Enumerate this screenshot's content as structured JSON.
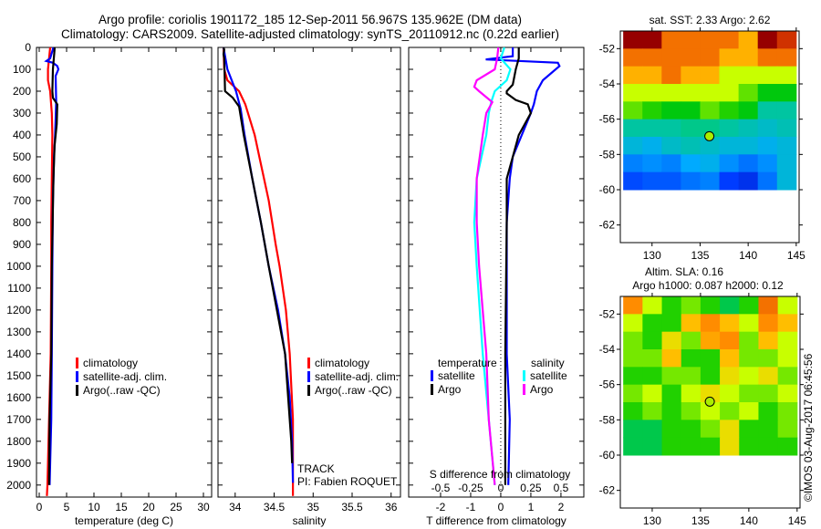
{
  "chart_data": [
    {
      "id": "temperature",
      "type": "line",
      "title_line1": "Argo profile: coriolis 1901172_185 12-Sep-2011 56.967S 135.962E (DM data)",
      "title_line2": "Climatology: CARS2009. Satellite-adjusted climatology: synTS_20110912.nc (0.22d earlier)",
      "xlabel": "temperature (deg C)",
      "xlim": [
        -0.5,
        31.5
      ],
      "ylim": [
        0,
        2055
      ],
      "xticks": [
        0,
        5,
        10,
        15,
        20,
        25,
        30
      ],
      "yticks": [
        0,
        100,
        200,
        300,
        400,
        500,
        600,
        700,
        800,
        900,
        1000,
        1100,
        1200,
        1300,
        1400,
        1500,
        1600,
        1700,
        1800,
        1900,
        2000
      ],
      "legend": [
        "climatology",
        "satellite-adj. clim.",
        "Argo(..raw -QC)"
      ],
      "series": [
        {
          "name": "climatology",
          "color": "#ff0000",
          "depth": [
            0,
            50,
            100,
            150,
            200,
            300,
            400,
            600,
            800,
            1000,
            1400,
            1800,
            2000,
            2050
          ],
          "values": [
            2.0,
            1.8,
            1.6,
            1.6,
            2.0,
            2.3,
            2.4,
            2.3,
            2.2,
            2.2,
            2.1,
            1.7,
            1.5,
            1.4
          ]
        },
        {
          "name": "satellite-adj. clim.",
          "color": "#0000ff",
          "depth": [
            0,
            50,
            62,
            70,
            85,
            100,
            130,
            250,
            400,
            500,
            700,
            1000,
            1400,
            1700,
            2000
          ],
          "values": [
            2.6,
            2.0,
            1.3,
            2.5,
            3.3,
            3.5,
            3.0,
            3.1,
            2.9,
            2.7,
            2.5,
            2.4,
            2.3,
            2.2,
            1.9
          ]
        },
        {
          "name": "Argo(..raw -QC)",
          "color": "#000000",
          "depth": [
            0,
            10,
            100,
            200,
            230,
            260,
            350,
            450,
            600,
            1000,
            1400,
            1700,
            2000
          ],
          "values": [
            2.8,
            2.8,
            2.5,
            2.4,
            2.5,
            3.3,
            3.2,
            2.8,
            2.6,
            2.3,
            2.2,
            1.9,
            1.8
          ]
        }
      ]
    },
    {
      "id": "salinity",
      "type": "line",
      "xlabel": "salinity",
      "xlim": [
        33.78,
        36.12
      ],
      "ylim": [
        0,
        2055
      ],
      "xticks": [
        34,
        34.5,
        35,
        35.5,
        36
      ],
      "legend": [
        "climatology",
        "satellite-adj. clim.",
        "Argo(..raw -QC)"
      ],
      "annotations": [
        "TRACK",
        "PI: Fabien ROQUET"
      ],
      "series": [
        {
          "name": "climatology",
          "color": "#ff0000",
          "depth": [
            0,
            100,
            150,
            200,
            260,
            400,
            500,
            700,
            900,
            1000,
            1200,
            1400,
            1700,
            2050
          ],
          "values": [
            33.85,
            33.86,
            33.9,
            34.05,
            34.13,
            34.25,
            34.31,
            34.43,
            34.52,
            34.57,
            34.65,
            34.7,
            34.74,
            34.74
          ]
        },
        {
          "name": "satellite-adj. clim.",
          "color": "#0000ff",
          "depth": [
            0,
            100,
            200,
            280,
            400,
            600,
            800,
            1000,
            1200,
            1400,
            1600,
            1800,
            1990
          ],
          "values": [
            33.85,
            33.9,
            34.01,
            34.07,
            34.12,
            34.22,
            34.33,
            34.43,
            34.55,
            34.64,
            34.7,
            34.73,
            34.74
          ]
        },
        {
          "name": "Argo(..raw -QC)",
          "color": "#000000",
          "depth": [
            0,
            10,
            30,
            50,
            200,
            230,
            270,
            400,
            600,
            800,
            1000,
            1400,
            1800,
            1900
          ],
          "values": [
            33.85,
            33.86,
            33.85,
            33.86,
            33.87,
            33.97,
            34.05,
            34.11,
            34.22,
            34.33,
            34.43,
            34.64,
            34.72,
            34.73
          ]
        }
      ]
    },
    {
      "id": "difference",
      "type": "line",
      "xlabel": "T difference from climatology",
      "x2label": "S difference from climatology",
      "xlim": [
        -3.06,
        2.76
      ],
      "ylim": [
        0,
        2055
      ],
      "xticks": [
        -2,
        -1,
        0,
        1,
        2
      ],
      "x2ticks": [
        "-0.5",
        "-0.25",
        "0",
        "0.25",
        "0.5"
      ],
      "legend_temperature": {
        "title": "temperature",
        "items": [
          "satellite",
          "Argo"
        ]
      },
      "legend_salinity": {
        "title": "salinity",
        "items": [
          "satellite",
          "Argo"
        ]
      },
      "series": [
        {
          "name": "temperature satellite",
          "color": "#0000ff",
          "var": "T",
          "depth": [
            0,
            40,
            55,
            70,
            85,
            150,
            200,
            260,
            300,
            400,
            500,
            600,
            800,
            1000,
            1400,
            1700,
            2000
          ],
          "values": [
            0.4,
            0.4,
            -0.5,
            1.9,
            1.95,
            1.4,
            1.2,
            1.1,
            1.0,
            0.7,
            0.4,
            0.3,
            0.2,
            0.2,
            0.2,
            0.3,
            0.25
          ]
        },
        {
          "name": "temperature Argo",
          "color": "#000000",
          "var": "T",
          "depth": [
            0,
            50,
            100,
            170,
            200,
            210,
            240,
            260,
            300,
            350,
            400,
            500,
            600,
            800,
            1400,
            2000
          ],
          "values": [
            0.6,
            0.6,
            0.5,
            0.4,
            0.2,
            0.2,
            0.5,
            0.9,
            1.0,
            0.8,
            0.6,
            0.4,
            0.2,
            0.2,
            0.15,
            0.15
          ]
        },
        {
          "name": "salinity satellite",
          "color": "#00ffff",
          "var": "S",
          "depth": [
            0,
            50,
            100,
            150,
            200,
            250,
            300,
            400,
            600,
            800,
            1000,
            1400,
            2000
          ],
          "values": [
            0.03,
            0.0,
            0.08,
            0.05,
            -0.05,
            -0.08,
            -0.1,
            -0.12,
            -0.2,
            -0.22,
            -0.2,
            -0.15,
            -0.05
          ]
        },
        {
          "name": "salinity Argo",
          "color": "#ff00ff",
          "var": "S",
          "depth": [
            0,
            50,
            100,
            150,
            180,
            200,
            250,
            300,
            400,
            600,
            800,
            1000,
            1400,
            1700,
            2000
          ],
          "values": [
            -0.02,
            -0.03,
            -0.05,
            -0.2,
            -0.22,
            -0.18,
            -0.07,
            -0.12,
            -0.15,
            -0.2,
            -0.2,
            -0.18,
            -0.12,
            -0.1,
            -0.05
          ]
        }
      ]
    },
    {
      "id": "sst-map",
      "type": "heatmap",
      "title": "sat. SST: 2.33 Argo: 2.62",
      "xlim": [
        126.7,
        145.3
      ],
      "ylim": [
        -63,
        -51
      ],
      "xticks": [
        130,
        135,
        140,
        145
      ],
      "yticks": [
        -52,
        -54,
        -56,
        -58,
        -60,
        -62
      ],
      "lon": [
        127,
        129,
        131,
        133,
        135,
        137,
        139,
        141,
        143,
        145
      ],
      "lat": [
        -51,
        -52,
        -53,
        -54,
        -55,
        -56,
        -57,
        -58,
        -59,
        -60
      ],
      "values": [
        [
          8,
          8,
          6,
          6,
          6,
          6,
          5,
          8,
          7
        ],
        [
          6,
          6,
          6,
          6,
          6,
          5,
          5,
          6,
          6
        ],
        [
          5,
          5,
          6,
          5,
          5,
          4,
          4,
          4,
          4
        ],
        [
          4,
          4,
          4,
          4,
          4,
          4,
          3.5,
          3,
          3
        ],
        [
          3.5,
          3.2,
          3,
          3,
          3.5,
          3.2,
          3,
          2.5,
          2.5
        ],
        [
          2.5,
          2.5,
          2.5,
          2.6,
          2.6,
          2.5,
          2.4,
          2.3,
          2.4
        ],
        [
          2.2,
          2.1,
          2.3,
          2.4,
          2.3,
          2.2,
          2.2,
          2.1,
          2.2
        ],
        [
          1.7,
          1.8,
          1.7,
          2.0,
          2.1,
          1.8,
          1.6,
          1.8,
          2.2
        ],
        [
          1.3,
          1.4,
          1.4,
          1.6,
          1.7,
          1.2,
          1.0,
          1.6,
          2.2
        ]
      ],
      "crange": [
        0,
        8
      ],
      "marker": {
        "lon": 135.962,
        "lat": -56.967
      }
    },
    {
      "id": "sla-map",
      "type": "heatmap",
      "title_line1": "Altim. SLA: 0.16",
      "title_line2": "Argo h1000: 0.087 h2000: 0.12",
      "xlim": [
        126.7,
        145.3
      ],
      "ylim": [
        -63,
        -51
      ],
      "xticks": [
        130,
        135,
        140,
        145
      ],
      "yticks": [
        -52,
        -54,
        -56,
        -58,
        -60,
        -62
      ],
      "lon": [
        127,
        129,
        131,
        133,
        135,
        137,
        139,
        141,
        143,
        145
      ],
      "lat": [
        -51,
        -52,
        -53,
        -54,
        -55,
        -56,
        -57,
        -58,
        -59,
        -60
      ],
      "values": [
        [
          0.3,
          0.1,
          0.0,
          0.05,
          0.0,
          -0.05,
          0.0,
          0.35,
          0.1
        ],
        [
          0.1,
          0.0,
          0.0,
          0.2,
          0.3,
          0.2,
          0.1,
          0.3,
          0.2
        ],
        [
          0.05,
          0.0,
          0.15,
          0.05,
          0.25,
          0.3,
          0.05,
          0.2,
          0.1
        ],
        [
          0.05,
          0.05,
          0.2,
          0.0,
          0.0,
          0.2,
          0.05,
          0.05,
          0.1
        ],
        [
          0.0,
          0.0,
          0.05,
          0.05,
          0.0,
          0.15,
          0.1,
          0.15,
          0.05
        ],
        [
          0.05,
          0.1,
          0.0,
          0.1,
          0.15,
          0.1,
          0.05,
          0.05,
          0.1
        ],
        [
          0.0,
          0.05,
          0.0,
          0.05,
          0.1,
          0.05,
          0.1,
          0.0,
          0.05
        ],
        [
          -0.05,
          -0.05,
          0.0,
          0.0,
          0.05,
          0.15,
          0.0,
          0.0,
          0.05
        ],
        [
          -0.05,
          -0.05,
          0.0,
          0.0,
          0.0,
          0.15,
          0.0,
          0.0,
          0.0
        ]
      ],
      "crange": [
        -0.4,
        0.6
      ],
      "marker": {
        "lon": 135.962,
        "lat": -56.967
      }
    }
  ],
  "credit": "©IMOS 03-Aug-2017 06:45:56"
}
